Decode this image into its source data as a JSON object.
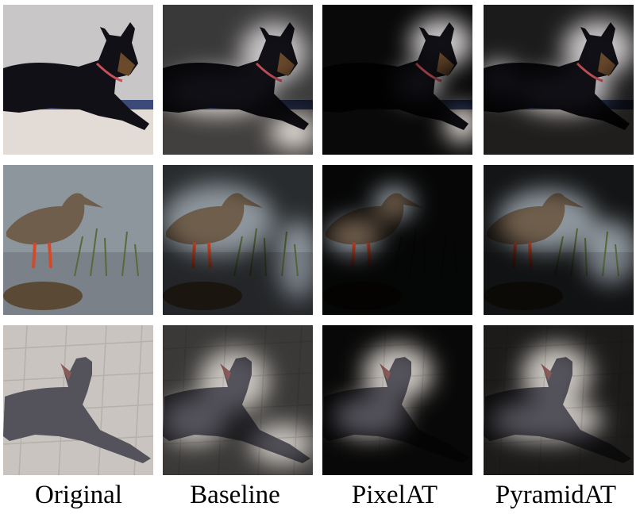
{
  "columns": [
    {
      "label": "Original"
    },
    {
      "label": "Baseline"
    },
    {
      "label": "PixelAT"
    },
    {
      "label": "PyramidAT"
    }
  ],
  "rows": [
    {
      "subject": "dog"
    },
    {
      "subject": "bird"
    },
    {
      "subject": "hairless-dog"
    }
  ]
}
